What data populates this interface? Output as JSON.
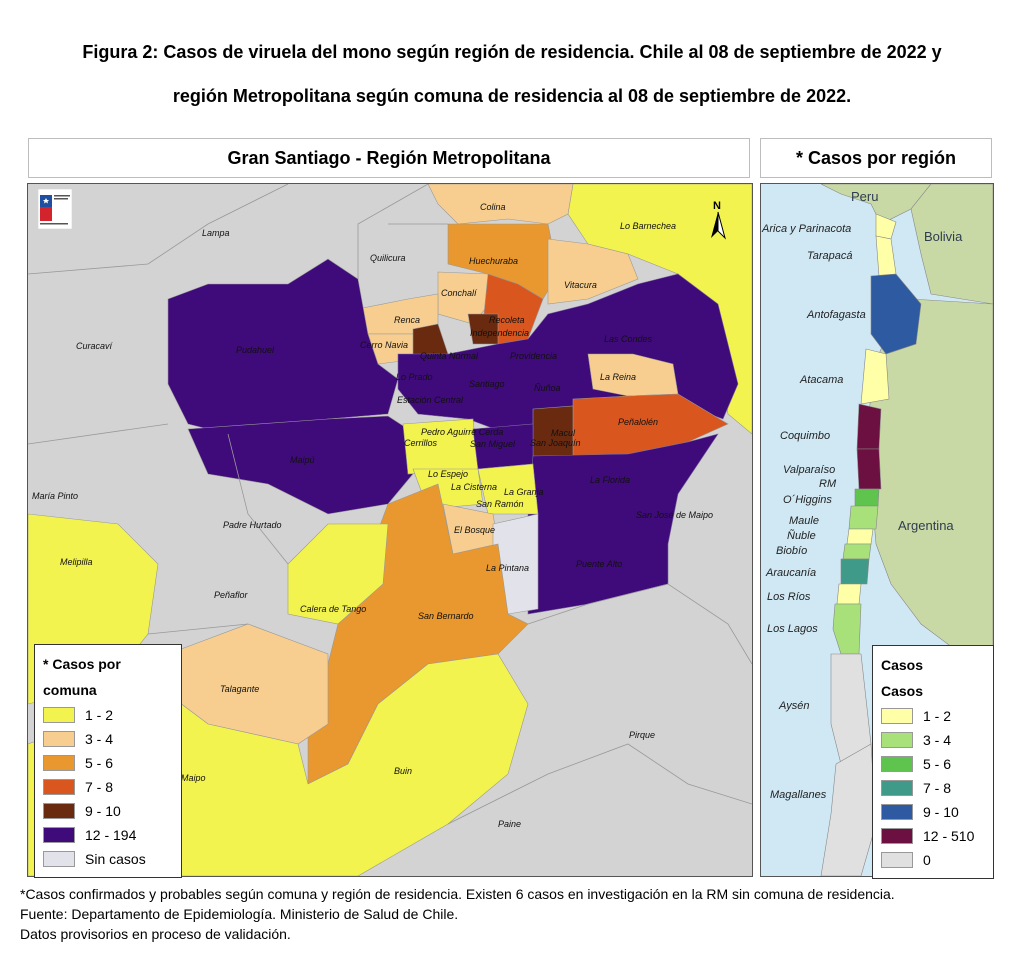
{
  "figure": {
    "title_line1": "Figura 2: Casos de viruela del mono según región de residencia. Chile al 08 de septiembre de 2022 y",
    "title_line2": "región Metropolitana según comuna de residencia al 08 de septiembre de 2022."
  },
  "left_panel": {
    "title": "Gran Santiago - Región Metropolitana",
    "north_label": "N",
    "legend": {
      "title_line1": "* Casos por",
      "title_line2": "comuna",
      "items": [
        {
          "label": "1 - 2",
          "color": "#f3f34f"
        },
        {
          "label": "3 - 4",
          "color": "#f7ce8f"
        },
        {
          "label": "5 - 6",
          "color": "#e8982e"
        },
        {
          "label": "7 - 8",
          "color": "#d9561e"
        },
        {
          "label": "9 - 10",
          "color": "#6a2a0f"
        },
        {
          "label": "12 - 194",
          "color": "#3f0a7a"
        },
        {
          "label": "Sin casos",
          "color": "#e2e2ea"
        }
      ]
    },
    "comunas": [
      "Colina",
      "Lo Barnechea",
      "Lampa",
      "Quilicura",
      "Huechuraba",
      "Vitacura",
      "Conchalí",
      "Renca",
      "Recoleta",
      "Independencia",
      "Las Condes",
      "Cerro Navia",
      "Quinta Normal",
      "Providencia",
      "Curacaví",
      "Pudahuel",
      "Lo Prado",
      "Santiago",
      "Ñuñoa",
      "La Reina",
      "Estación Central",
      "Peñalolén",
      "Pedro Aguirre Cerda",
      "Cerrillos",
      "Macul",
      "San Joaquín",
      "San Miguel",
      "Maipú",
      "Lo Espejo",
      "La Cisterna",
      "La Florida",
      "La Granja",
      "María Pinto",
      "San Ramón",
      "San José de Maipo",
      "Padre Hurtado",
      "El Bosque",
      "Melipilla",
      "La Pintana",
      "Puente Alto",
      "Peñaflor",
      "Calera de Tango",
      "San Bernardo",
      "Talagante",
      "Pirque",
      "Isla de Maipo",
      "Buin",
      "Paine"
    ]
  },
  "right_panel": {
    "title": "* Casos por región",
    "countries": [
      "Peru",
      "Bolivia",
      "Argentina"
    ],
    "regiones": [
      "Arica y Parinacota",
      "Tarapacá",
      "Antofagasta",
      "Atacama",
      "Coquimbo",
      "Valparaíso",
      "RM",
      "O´Higgins",
      "Maule",
      "Ñuble",
      "Biobío",
      "Araucanía",
      "Los Ríos",
      "Los Lagos",
      "Aysén",
      "Magallanes"
    ],
    "legend": {
      "title_line1": "Casos",
      "title_line2": "Casos",
      "items": [
        {
          "label": "1 - 2",
          "color": "#ffffa8"
        },
        {
          "label": "3 - 4",
          "color": "#a8e07a"
        },
        {
          "label": "5 - 6",
          "color": "#5ec44e"
        },
        {
          "label": "7 - 8",
          "color": "#3f9a8a"
        },
        {
          "label": "9 - 10",
          "color": "#2d5aa0"
        },
        {
          "label": "12 - 510",
          "color": "#6b1040"
        },
        {
          "label": "0",
          "color": "#e0e0e0"
        }
      ]
    }
  },
  "footnote": {
    "line1": "*Casos confirmados y probables según comuna y región de residencia. Existen 6 casos en investigación en la RM sin comuna de residencia.",
    "line2": "Fuente: Departamento de Epidemiología. Ministerio de Salud de Chile.",
    "line3": "Datos provisorios en proceso de validación."
  }
}
